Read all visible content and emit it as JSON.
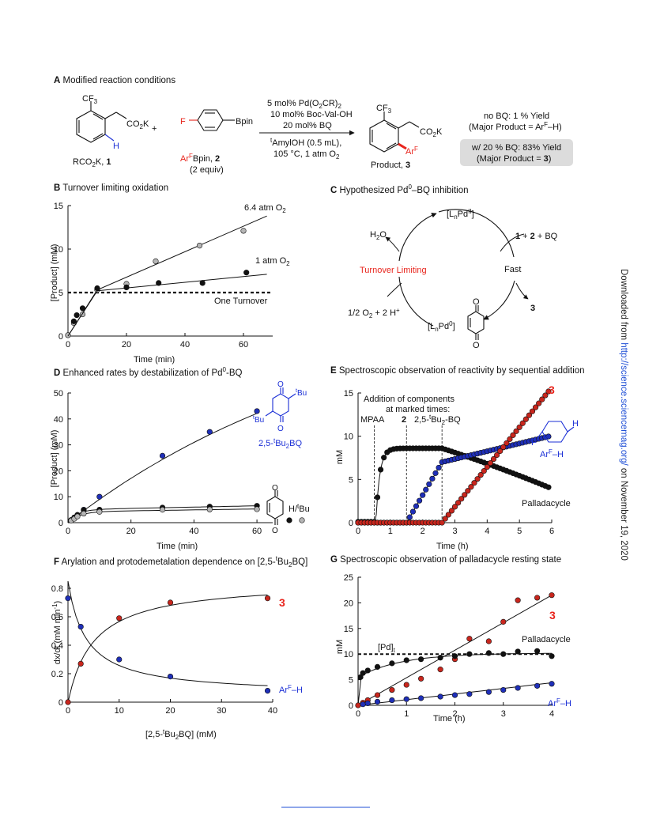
{
  "panelA": {
    "title_letter": "A",
    "title": "Modified reaction conditions",
    "reactant1_sub": "CF",
    "reactant1_sub_3": "3",
    "reactant1_group": "CO",
    "reactant1_group_2": "2",
    "reactant1_group_K": "K",
    "reactant1_H": "H",
    "reactant1_label": "RCO",
    "reactant1_label_2": "2",
    "reactant1_label_tail": "K, ",
    "reactant1_num": "1",
    "plus": "+",
    "reactant2_F": "F",
    "reactant2_Bpin": "Bpin",
    "reactant2_label_Ar": "Ar",
    "reactant2_label_F": "F",
    "reactant2_label_tail": "Bpin, ",
    "reactant2_num": "2",
    "reactant2_equiv": "(2 equiv)",
    "cond1": "5 mol% Pd(O",
    "cond1b": "2",
    "cond1c": "CR)",
    "cond1d": "2",
    "cond2": "10 mol% Boc-Val-OH",
    "cond3": "20 mol% BQ",
    "cond4a": "t",
    "cond4b": "AmylOH (0.5 mL),",
    "cond5": "105 °C, 1 atm O",
    "cond5b": "2",
    "product_CF": "CF",
    "product_CF3": "3",
    "product_CO": "CO",
    "product_CO2": "2",
    "product_K": "K",
    "product_Ar": "Ar",
    "product_ArF": "F",
    "product_label": "Product, ",
    "product_num": "3",
    "noBQ_line1": "no BQ: 1 % Yield",
    "noBQ_line2": "(Major Product = Ar",
    "noBQ_line2F": "F",
    "noBQ_line2tail": "–H)",
    "withBQ_line1": "w/ 20 % BQ: 83% Yield",
    "withBQ_line2": "(Major Product = ",
    "withBQ_line2num": "3",
    "withBQ_line2tail": ")"
  },
  "panelB": {
    "title_letter": "B",
    "title": "Turnover limiting oxidation",
    "xlabel": "Time (min)",
    "ylabel": "[Product] (mM)",
    "label_high": "6.4 atm O",
    "label_high_sub": "2",
    "label_low": "1 atm O",
    "label_low_sub": "2",
    "label_turnover": "One Turnover"
  },
  "panelC": {
    "title_letter": "C",
    "title": "Hypothesized Pd",
    "title_sup": "0",
    "title_tail": "–BQ inhibition",
    "pd2_a": "[L",
    "pd2_n": "n",
    "pd2_b": "Pd",
    "pd2_sup": "II",
    "pd2_c": "]",
    "add_a": "1",
    "add_b": " + ",
    "add_c": "2",
    "add_d": " + BQ",
    "fast": "Fast",
    "product": "3",
    "h2o_a": "H",
    "h2o_sub": "2",
    "h2o_b": "O",
    "turnover_limiting": "Turnover Limiting",
    "o2_a": "1/2 O",
    "o2_sub": "2",
    "o2_b": " + 2 H",
    "o2_sup": "+",
    "pd0_a": "[L",
    "pd0_n": "n",
    "pd0_b": "Pd",
    "pd0_sup": "0",
    "pd0_c": "]",
    "O_top": "O",
    "O_bottom": "O"
  },
  "panelD": {
    "title_letter": "D",
    "title": "Enhanced rates by destabilization of Pd",
    "title_sup": "0",
    "title_tail": "-BQ",
    "xlabel": "Time (min)",
    "ylabel": "[Product] (mM)",
    "blue_label_a": "2,5-",
    "blue_label_sup": "t",
    "blue_label_b": "Bu",
    "blue_label_sub": "2",
    "blue_label_c": "BQ",
    "tBu_top_sup": "t",
    "tBu_top": "Bu",
    "tBu_left_sup": "t",
    "tBu_left": "Bu",
    "O_top": "O",
    "O_bottom": "O",
    "bq_O_top": "O",
    "bq_O_bottom": "O",
    "bq_label_a": "H/",
    "bq_label_sup": "t",
    "bq_label_b": "Bu"
  },
  "panelE": {
    "title_letter": "E",
    "title": "Spectroscopic observation of reactivity by sequential addition",
    "xlabel": "Time (h)",
    "ylabel": "mM",
    "ann1": "Addition of components",
    "ann2": "at marked times:",
    "ann_mpaa": "MPAA",
    "ann_2": "2",
    "ann_bq_a": "2,5-",
    "ann_bq_sup": "t",
    "ann_bq_b": "Bu",
    "ann_bq_sub": "2",
    "ann_bq_c": "-BQ",
    "label_3": "3",
    "label_arh_a": "Ar",
    "label_arh_sup": "F",
    "label_arh_b": "–H",
    "label_F": "F",
    "label_H": "H",
    "label_palladacycle": "Palladacycle"
  },
  "panelF": {
    "title_letter": "F",
    "title": "Arylation and protodemetalation dependence on [2,5-",
    "title_sup": "t",
    "title_b": "Bu",
    "title_sub": "2",
    "title_c": "BQ]",
    "xlabel_a": "[2,5-",
    "xlabel_sup": "t",
    "xlabel_b": "Bu",
    "xlabel_sub": "2",
    "xlabel_c": "BQ] (mM)",
    "ylabel": "dx/dt (mM min",
    "ylabel_sup": "-1",
    "ylabel_tail": ")",
    "label_3": "3",
    "label_arh_a": "Ar",
    "label_arh_sup": "F",
    "label_arh_b": "–H"
  },
  "panelG": {
    "title_letter": "G",
    "title": "Spectroscopic observation of palladacycle resting state",
    "xlabel": "Time (h)",
    "ylabel": "mM",
    "label_pdt_a": "[Pd]",
    "label_pdt_sub": "t",
    "label_3": "3",
    "label_palladacycle": "Palladacycle",
    "label_arh_a": "Ar",
    "label_arh_sup": "F",
    "label_arh_b": "–H"
  },
  "sidebar": {
    "prefix": "Downloaded from ",
    "link": "http://science.sciencemag.org/",
    "suffix": " on November 19, 2020"
  },
  "colors": {
    "red": "#e8251d",
    "blue": "#1b2fd6",
    "point_red": "#c8261d",
    "point_blue": "#1f2fb8",
    "point_black": "#111111",
    "point_gray": "#b5b5b5",
    "box_gray": "#dcdcdc",
    "link": "#1f4fd6"
  },
  "chart_data": [
    {
      "id": "B",
      "type": "scatter",
      "xlim": [
        0,
        70
      ],
      "ylim": [
        0,
        15
      ],
      "xticks": [
        0,
        20,
        40,
        60
      ],
      "yticks": [
        0,
        5,
        10,
        15
      ],
      "hline": 5,
      "series": [
        {
          "name": "6.4 atm O2",
          "color": "gray",
          "x": [
            0,
            2,
            5,
            10,
            20,
            30,
            45,
            60
          ],
          "y": [
            0.1,
            1.5,
            2.5,
            5.3,
            6.0,
            8.6,
            10.4,
            12.1
          ],
          "fit": [
            [
              0,
              0
            ],
            [
              10,
              5.3
            ],
            [
              68,
              13.8
            ]
          ]
        },
        {
          "name": "1 atm O2",
          "color": "black",
          "x": [
            2,
            3,
            5,
            10,
            20,
            31,
            46,
            61
          ],
          "y": [
            1.7,
            2.4,
            3.2,
            5.5,
            5.6,
            6.1,
            6.1,
            7.3
          ],
          "fit": [
            [
              0,
              0
            ],
            [
              10,
              5.2
            ],
            [
              68,
              7.1
            ]
          ]
        }
      ]
    },
    {
      "id": "D",
      "type": "scatter",
      "xlim": [
        0,
        65
      ],
      "ylim": [
        0,
        50
      ],
      "xticks": [
        0,
        20,
        40,
        60
      ],
      "yticks": [
        0,
        10,
        20,
        30,
        40,
        50
      ],
      "series": [
        {
          "name": "2,5-tBu2BQ",
          "color": "blue",
          "x": [
            1,
            2,
            3,
            5,
            10,
            30,
            45,
            60
          ],
          "y": [
            1.0,
            2.0,
            2.8,
            5.0,
            10.0,
            25.8,
            35.0,
            43.0
          ]
        },
        {
          "name": "BQ (H)",
          "color": "black",
          "x": [
            1,
            2,
            3,
            5,
            10,
            30,
            45,
            60
          ],
          "y": [
            1.0,
            2.0,
            3.0,
            4.8,
            5.0,
            5.8,
            6.2,
            6.5
          ]
        },
        {
          "name": "BQ (tBu)",
          "color": "gray",
          "x": [
            1,
            2,
            3,
            5,
            10,
            30,
            45,
            60
          ],
          "y": [
            0.8,
            1.5,
            2.4,
            3.5,
            4.2,
            5.0,
            5.1,
            5.2
          ]
        }
      ]
    },
    {
      "id": "E",
      "type": "scatter",
      "xlim": [
        0,
        6
      ],
      "ylim": [
        0,
        15
      ],
      "xticks": [
        0,
        1,
        2,
        3,
        4,
        5,
        6
      ],
      "yticks": [
        0,
        5,
        10,
        15
      ],
      "additions": [
        0.5,
        1.5,
        2.6
      ],
      "series": [
        {
          "name": "3",
          "color": "red"
        },
        {
          "name": "ArF-H",
          "color": "blue"
        },
        {
          "name": "Palladacycle",
          "color": "black"
        }
      ]
    },
    {
      "id": "F",
      "type": "scatter",
      "xlim": [
        0,
        40
      ],
      "ylim": [
        0,
        0.85
      ],
      "xticks": [
        0,
        10,
        20,
        30,
        40
      ],
      "yticks": [
        0,
        0.2,
        0.4,
        0.6,
        0.8
      ],
      "series": [
        {
          "name": "3",
          "color": "red",
          "x": [
            0,
            2.5,
            10,
            20,
            39
          ],
          "y": [
            0.0,
            0.27,
            0.59,
            0.7,
            0.73
          ]
        },
        {
          "name": "ArF-H",
          "color": "blue",
          "x": [
            0,
            2.5,
            10,
            20,
            39
          ],
          "y": [
            0.73,
            0.53,
            0.3,
            0.18,
            0.08
          ]
        }
      ]
    },
    {
      "id": "G",
      "type": "scatter",
      "xlim": [
        0,
        4
      ],
      "ylim": [
        0,
        25
      ],
      "xticks": [
        0,
        1,
        2,
        3,
        4
      ],
      "yticks": [
        0,
        5,
        10,
        15,
        20,
        25
      ],
      "hline": 10,
      "series": [
        {
          "name": "3",
          "color": "red",
          "x": [
            0,
            0.1,
            0.2,
            0.4,
            0.7,
            1.0,
            1.3,
            1.7,
            2.0,
            2.3,
            2.7,
            3.0,
            3.3,
            3.7,
            4.0
          ],
          "y": [
            0,
            0.5,
            1.0,
            2.0,
            3.0,
            4.0,
            5.2,
            7.0,
            9.0,
            13.0,
            12.5,
            16.3,
            20.5,
            21.0,
            21.5
          ]
        },
        {
          "name": "Palladacycle",
          "color": "black",
          "x": [
            0.05,
            0.1,
            0.2,
            0.4,
            0.7,
            1.0,
            1.3,
            1.7,
            2.0,
            2.3,
            2.7,
            3.0,
            3.3,
            3.7,
            4.0
          ],
          "y": [
            5.5,
            6.3,
            6.8,
            7.5,
            8.2,
            8.8,
            9.0,
            9.3,
            9.6,
            10.0,
            10.2,
            10.0,
            10.5,
            10.6,
            9.6
          ]
        },
        {
          "name": "ArF-H",
          "color": "blue",
          "x": [
            0.1,
            0.2,
            0.4,
            0.7,
            1.0,
            1.3,
            1.7,
            2.0,
            2.3,
            2.7,
            3.0,
            3.3,
            3.7,
            4.0
          ],
          "y": [
            0.2,
            0.4,
            0.7,
            1.0,
            1.2,
            1.4,
            1.7,
            2.0,
            2.2,
            2.6,
            3.0,
            3.4,
            3.8,
            4.2
          ]
        }
      ]
    }
  ]
}
